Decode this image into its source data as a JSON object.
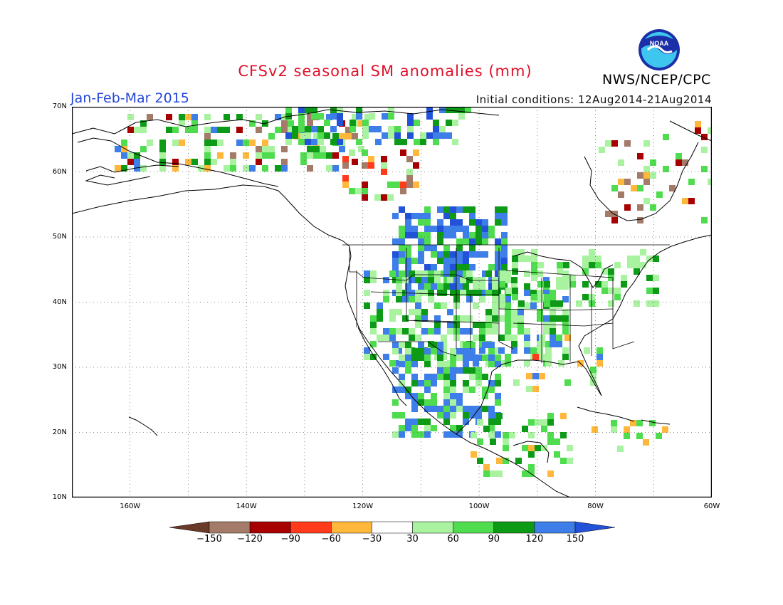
{
  "header": {
    "title": "CFSv2 seasonal SM anomalies (mm)",
    "period": "Jan-Feb-Mar 2015",
    "initial_conditions": "Initial conditions: 12Aug2014-21Aug2014",
    "org": "NWS/NCEP/CPC",
    "logo_text": "NOAA"
  },
  "map": {
    "lon_range": [
      "170W",
      "60W"
    ],
    "lat_range": [
      "10N",
      "70N"
    ],
    "lat_labels": [
      "70N",
      "60N",
      "50N",
      "40N",
      "30N",
      "20N",
      "10N"
    ],
    "lon_labels": [
      "160W",
      "140W",
      "120W",
      "100W",
      "80W",
      "60W"
    ],
    "grid": "dotted"
  },
  "legend": {
    "labels": [
      "-150",
      "-120",
      "-90",
      "-60",
      "-30",
      "30",
      "60",
      "90",
      "120",
      "150"
    ],
    "colors": [
      "#6b3b2a",
      "#a47a68",
      "#a80000",
      "#ff3b1b",
      "#ffb83b",
      "#ffffff",
      "#a8f2a0",
      "#4fdc4f",
      "#0d9a16",
      "#3d7ee8",
      "#2252d8"
    ]
  },
  "colors": {
    "title": "#e0102a",
    "period": "#2548d8"
  }
}
